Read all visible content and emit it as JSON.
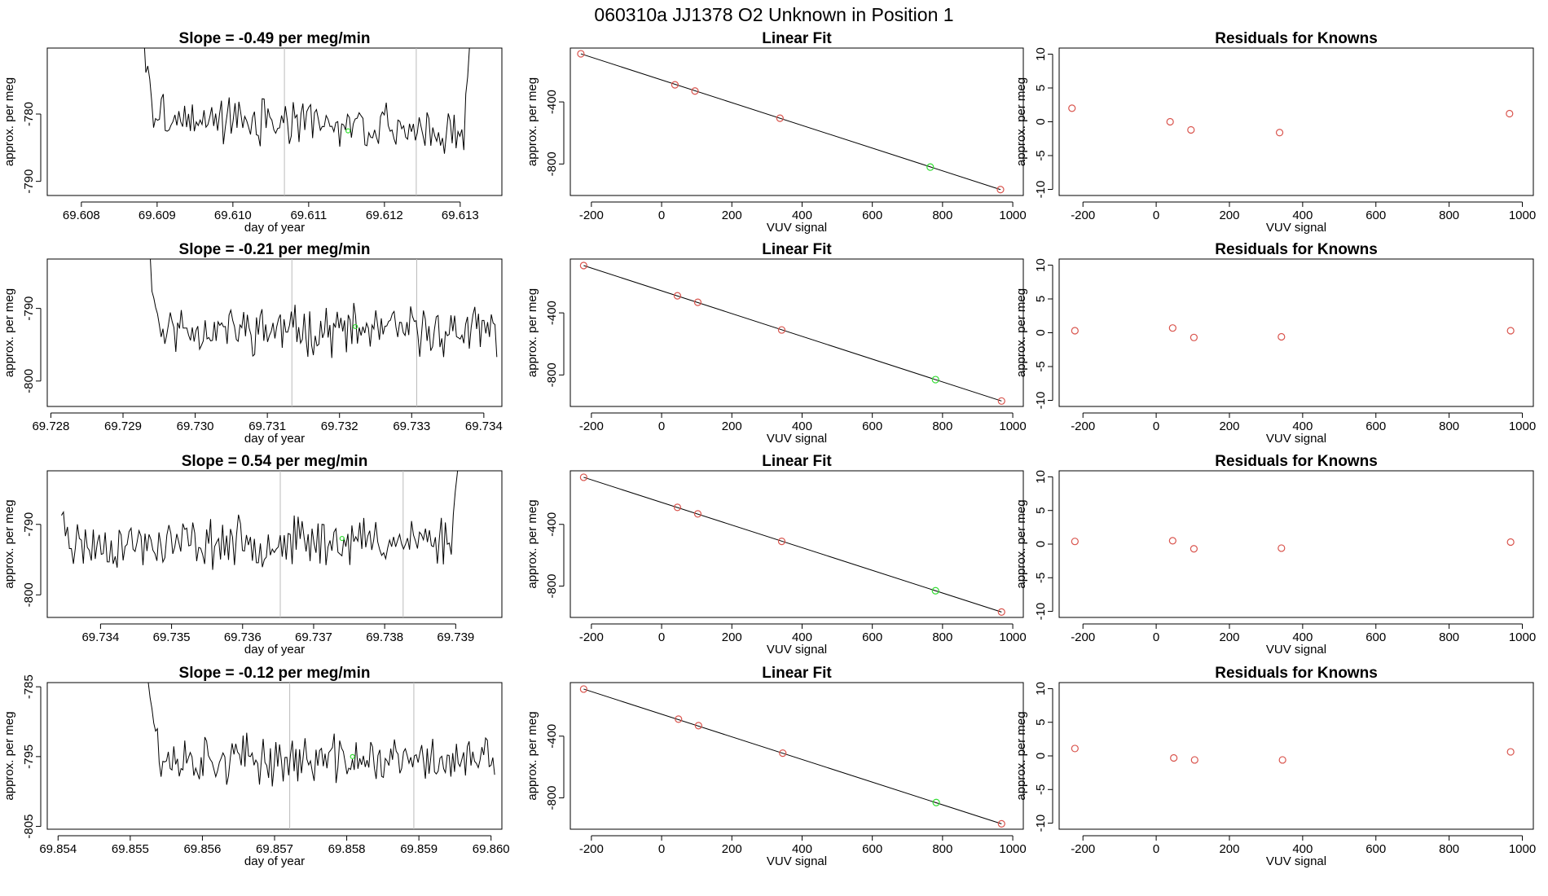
{
  "figure_title": "060310a     JJ1378   O2 Unknown in Position  1",
  "colors": {
    "line": "#000000",
    "known_point": "#d9544d",
    "unknown_point": "#33dd33",
    "vline": "#bbbbbb"
  },
  "chart_data": [
    {
      "type": "line",
      "row": 0,
      "title": "Slope =  -0.49  per meg/min",
      "xlabel": "day of year",
      "ylabel": "approx. per meg",
      "xlim": [
        69.60755,
        69.61355
      ],
      "ylim": [
        -792.1,
        -770.2
      ],
      "xticks": [
        69.608,
        69.609,
        69.61,
        69.611,
        69.612,
        69.613
      ],
      "xtick_labels": [
        "69.608",
        "69.609",
        "69.610",
        "69.611",
        "69.612",
        "69.613"
      ],
      "yticks": [
        -780,
        -790
      ],
      "ytick_labels": [
        "-780",
        "-790"
      ],
      "trace": {
        "x_start": 69.6088,
        "x_end": 69.61315,
        "start_y": -768,
        "baseline": -781.5,
        "noise": 2.5,
        "drift": -2.5,
        "n": 170,
        "end_rise_y": -765,
        "seed": 3
      },
      "vlines": [
        69.61068,
        69.61242
      ],
      "green_point": {
        "x": 69.61152,
        "y": -782.5
      }
    },
    {
      "type": "line",
      "row": 1,
      "title": "Slope =  -0.21  per meg/min",
      "xlabel": "day of year",
      "ylabel": "approx. per meg",
      "xlim": [
        69.72795,
        69.73425
      ],
      "ylim": [
        -803.5,
        -783.2
      ],
      "xticks": [
        69.728,
        69.729,
        69.73,
        69.731,
        69.732,
        69.733,
        69.734
      ],
      "xtick_labels": [
        "69.728",
        "69.729",
        "69.730",
        "69.731",
        "69.732",
        "69.733",
        "69.734"
      ],
      "yticks": [
        -790,
        -800
      ],
      "ytick_labels": [
        "-790",
        "-800"
      ],
      "trace": {
        "x_start": 69.72935,
        "x_end": 69.73418,
        "start_y": -782,
        "baseline": -793,
        "noise": 2.5,
        "drift": -0.5,
        "n": 190,
        "end_rise_y": null,
        "seed": 11
      },
      "vlines": [
        69.73134,
        69.73307
      ],
      "green_point": {
        "x": 69.73222,
        "y": -792.5
      }
    },
    {
      "type": "line",
      "row": 2,
      "title": "Slope =  0.54  per meg/min",
      "xlabel": "day of year",
      "ylabel": "approx. per meg",
      "xlim": [
        69.73325,
        69.73965
      ],
      "ylim": [
        -803.2,
        -782.4
      ],
      "xticks": [
        69.734,
        69.735,
        69.736,
        69.737,
        69.738,
        69.739
      ],
      "xtick_labels": [
        "69.734",
        "69.735",
        "69.736",
        "69.737",
        "69.738",
        "69.739"
      ],
      "yticks": [
        -790,
        -800
      ],
      "ytick_labels": [
        "-790",
        "-800"
      ],
      "trace": {
        "x_start": 69.73345,
        "x_end": 69.73905,
        "start_y": -789,
        "baseline": -792.5,
        "noise": 2.6,
        "drift": 0.8,
        "n": 200,
        "end_rise_y": -780,
        "seed": 23
      },
      "vlines": [
        69.73653,
        69.73826
      ],
      "green_point": {
        "x": 69.7374,
        "y": -792
      }
    },
    {
      "type": "line",
      "row": 3,
      "title": "Slope =  -0.12  per meg/min",
      "xlabel": "day of year",
      "ylabel": "approx. per meg",
      "xlim": [
        69.85385,
        69.86015
      ],
      "ylim": [
        -805.4,
        -784.4
      ],
      "xticks": [
        69.854,
        69.855,
        69.856,
        69.857,
        69.858,
        69.859,
        69.86
      ],
      "xtick_labels": [
        "69.854",
        "69.855",
        "69.856",
        "69.857",
        "69.858",
        "69.859",
        "69.860"
      ],
      "yticks": [
        -785,
        -795,
        -805
      ],
      "ytick_labels": [
        "-785",
        "-795",
        "-805"
      ],
      "trace": {
        "x_start": 69.85525,
        "x_end": 69.86005,
        "start_y": -783,
        "baseline": -795.5,
        "noise": 2.6,
        "drift": -0.3,
        "n": 190,
        "end_rise_y": null,
        "seed": 37
      },
      "vlines": [
        69.85721,
        69.85893
      ],
      "green_point": {
        "x": 69.85808,
        "y": -795
      }
    },
    {
      "type": "scatter",
      "row": 0,
      "title": "Linear Fit",
      "xlabel": "VUV signal",
      "ylabel": "approx. per meg",
      "xlim": [
        -260,
        1030
      ],
      "ylim": [
        -1003,
        -53
      ],
      "xticks": [
        -200,
        0,
        200,
        400,
        600,
        800,
        1000
      ],
      "xtick_labels": [
        "-200",
        "0",
        "200",
        "400",
        "600",
        "800",
        "1000"
      ],
      "yticks": [
        -400,
        -800
      ],
      "ytick_labels": [
        "-400",
        "-800"
      ],
      "fit_line": [
        [
          -230,
          -90
        ],
        [
          965,
          -965
        ]
      ],
      "known_points": [
        [
          -230,
          -90
        ],
        [
          38,
          -290
        ],
        [
          95,
          -330
        ],
        [
          337,
          -505
        ],
        [
          965,
          -965
        ]
      ],
      "unknown_point": [
        765,
        -820
      ]
    },
    {
      "type": "scatter",
      "row": 1,
      "title": "Linear Fit",
      "xlabel": "VUV signal",
      "ylabel": "approx. per meg",
      "xlim": [
        -260,
        1030
      ],
      "ylim": [
        -1003,
        -53
      ],
      "xticks": [
        -200,
        0,
        200,
        400,
        600,
        800,
        1000
      ],
      "xtick_labels": [
        "-200",
        "0",
        "200",
        "400",
        "600",
        "800",
        "1000"
      ],
      "yticks": [
        -400,
        -800
      ],
      "ytick_labels": [
        "-400",
        "-800"
      ],
      "fit_line": [
        [
          -222,
          -95
        ],
        [
          968,
          -968
        ]
      ],
      "known_points": [
        [
          -222,
          -95
        ],
        [
          45,
          -290
        ],
        [
          103,
          -332
        ],
        [
          342,
          -510
        ],
        [
          968,
          -968
        ]
      ],
      "unknown_point": [
        780,
        -830
      ]
    },
    {
      "type": "scatter",
      "row": 2,
      "title": "Linear Fit",
      "xlabel": "VUV signal",
      "ylabel": "approx. per meg",
      "xlim": [
        -260,
        1030
      ],
      "ylim": [
        -1003,
        -53
      ],
      "xticks": [
        -200,
        0,
        200,
        400,
        600,
        800,
        1000
      ],
      "xtick_labels": [
        "-200",
        "0",
        "200",
        "400",
        "600",
        "800",
        "1000"
      ],
      "yticks": [
        -400,
        -800
      ],
      "ytick_labels": [
        "-400",
        "-800"
      ],
      "fit_line": [
        [
          -222,
          -95
        ],
        [
          968,
          -968
        ]
      ],
      "known_points": [
        [
          -222,
          -95
        ],
        [
          45,
          -290
        ],
        [
          103,
          -332
        ],
        [
          342,
          -510
        ],
        [
          968,
          -968
        ]
      ],
      "unknown_point": [
        780,
        -830
      ]
    },
    {
      "type": "scatter",
      "row": 3,
      "title": "Linear Fit",
      "xlabel": "VUV signal",
      "ylabel": "approx. per meg",
      "xlim": [
        -260,
        1030
      ],
      "ylim": [
        -1003,
        -53
      ],
      "xticks": [
        -200,
        0,
        200,
        400,
        600,
        800,
        1000
      ],
      "xtick_labels": [
        "-200",
        "0",
        "200",
        "400",
        "600",
        "800",
        "1000"
      ],
      "yticks": [
        -400,
        -800
      ],
      "ytick_labels": [
        "-400",
        "-800"
      ],
      "fit_line": [
        [
          -222,
          -95
        ],
        [
          968,
          -968
        ]
      ],
      "known_points": [
        [
          -222,
          -95
        ],
        [
          48,
          -290
        ],
        [
          105,
          -332
        ],
        [
          345,
          -510
        ],
        [
          968,
          -968
        ]
      ],
      "unknown_point": [
        782,
        -830
      ]
    },
    {
      "type": "scatter",
      "row": 0,
      "title": "Residuals for Knowns",
      "xlabel": "VUV signal",
      "ylabel": "approx. per meg",
      "xlim": [
        -265,
        1030
      ],
      "ylim": [
        -10.9,
        10.9
      ],
      "xticks": [
        -200,
        0,
        200,
        400,
        600,
        800,
        1000
      ],
      "xtick_labels": [
        "-200",
        "0",
        "200",
        "400",
        "600",
        "800",
        "1000"
      ],
      "yticks": [
        10,
        5,
        0,
        -5,
        -10
      ],
      "ytick_labels": [
        "10",
        "5",
        "0",
        "-5",
        "-10"
      ],
      "known_points": [
        [
          -230,
          2.0
        ],
        [
          38,
          0.0
        ],
        [
          95,
          -1.2
        ],
        [
          337,
          -1.6
        ],
        [
          965,
          1.2
        ]
      ]
    },
    {
      "type": "scatter",
      "row": 1,
      "title": "Residuals for Knowns",
      "xlabel": "VUV signal",
      "ylabel": "approx. per meg",
      "xlim": [
        -265,
        1030
      ],
      "ylim": [
        -10.9,
        10.9
      ],
      "xticks": [
        -200,
        0,
        200,
        400,
        600,
        800,
        1000
      ],
      "xtick_labels": [
        "-200",
        "0",
        "200",
        "400",
        "600",
        "800",
        "1000"
      ],
      "yticks": [
        10,
        5,
        0,
        -5,
        -10
      ],
      "ytick_labels": [
        "10",
        "5",
        "0",
        "-5",
        "-10"
      ],
      "known_points": [
        [
          -222,
          0.3
        ],
        [
          45,
          0.7
        ],
        [
          103,
          -0.7
        ],
        [
          342,
          -0.6
        ],
        [
          968,
          0.3
        ]
      ]
    },
    {
      "type": "scatter",
      "row": 2,
      "title": "Residuals for Knowns",
      "xlabel": "VUV signal",
      "ylabel": "approx. per meg",
      "xlim": [
        -265,
        1030
      ],
      "ylim": [
        -10.9,
        10.9
      ],
      "xticks": [
        -200,
        0,
        200,
        400,
        600,
        800,
        1000
      ],
      "xtick_labels": [
        "-200",
        "0",
        "200",
        "400",
        "600",
        "800",
        "1000"
      ],
      "yticks": [
        10,
        5,
        0,
        -5,
        -10
      ],
      "ytick_labels": [
        "10",
        "5",
        "0",
        "-5",
        "-10"
      ],
      "known_points": [
        [
          -222,
          0.4
        ],
        [
          45,
          0.5
        ],
        [
          103,
          -0.7
        ],
        [
          342,
          -0.6
        ],
        [
          968,
          0.3
        ]
      ]
    },
    {
      "type": "scatter",
      "row": 3,
      "title": "Residuals for Knowns",
      "xlabel": "VUV signal",
      "ylabel": "approx. per meg",
      "xlim": [
        -265,
        1030
      ],
      "ylim": [
        -10.9,
        10.9
      ],
      "xticks": [
        -200,
        0,
        200,
        400,
        600,
        800,
        1000
      ],
      "xtick_labels": [
        "-200",
        "0",
        "200",
        "400",
        "600",
        "800",
        "1000"
      ],
      "yticks": [
        10,
        5,
        0,
        -5,
        -10
      ],
      "ytick_labels": [
        "10",
        "5",
        "0",
        "-5",
        "-10"
      ],
      "known_points": [
        [
          -222,
          1.1
        ],
        [
          48,
          -0.3
        ],
        [
          105,
          -0.6
        ],
        [
          345,
          -0.6
        ],
        [
          968,
          0.6
        ]
      ]
    }
  ]
}
